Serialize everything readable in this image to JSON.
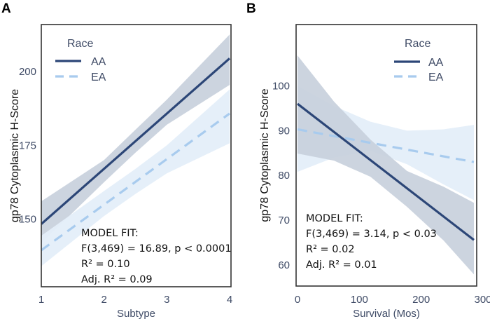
{
  "chart_data": [
    {
      "type": "line",
      "panel_label": "A",
      "xlabel": "Subtype",
      "ylabel": "gp78 Cytoplasmic H-Score",
      "xlim": [
        1,
        4
      ],
      "ylim": [
        127,
        216
      ],
      "xticks": [
        "1",
        "2",
        "3",
        "4"
      ],
      "yticks": [
        "150",
        "175",
        "200"
      ],
      "grid": false,
      "legend": {
        "title": "Race",
        "placement": "top-left"
      },
      "annotation": [
        "MODEL FIT:",
        "F(3,469) = 16.89, p < 0.0001",
        "R² = 0.10",
        "Adj. R² = 0.09"
      ],
      "series": [
        {
          "name": "AA",
          "style": "solid",
          "color": "#2c4677",
          "band_color": "#c7cfdb",
          "x": [
            1,
            4
          ],
          "y": [
            148.3,
            204.5
          ],
          "band": {
            "x": [
              1,
              2,
              2.5,
              3,
              4
            ],
            "lower": [
              141.8,
              162.5,
              172.5,
              182,
              195.5
            ],
            "upper": [
              156,
              170,
              180.3,
              190.5,
              212.6
            ]
          }
        },
        {
          "name": "EA",
          "style": "dashed",
          "color": "#a8cbee",
          "band_color": "#e4eef9",
          "x": [
            1,
            4
          ],
          "y": [
            139.4,
            185.8
          ],
          "band": {
            "x": [
              1,
              2,
              2.5,
              3,
              4
            ],
            "lower": [
              134,
              151,
              158.5,
              165.5,
              175.7
            ],
            "upper": [
              144.3,
              159.5,
              167,
              175,
              194
            ]
          }
        }
      ]
    },
    {
      "type": "line",
      "panel_label": "B",
      "xlabel": "Survival (Mos)",
      "ylabel": "gp78 Cytoplasmic H-Score",
      "xlim": [
        0,
        290
      ],
      "ylim": [
        55.3,
        113.7
      ],
      "xticks": [
        "0",
        "100",
        "200",
        "300"
      ],
      "yticks": [
        "60",
        "70",
        "80",
        "90",
        "100"
      ],
      "grid": false,
      "legend": {
        "title": "Race",
        "placement": "top-right"
      },
      "annotation": [
        "MODEL FIT:",
        "F(3,469) = 3.14, p < 0.03",
        "R² = 0.02",
        "Adj. R² = 0.01"
      ],
      "series": [
        {
          "name": "EA",
          "style": "dashed",
          "color": "#a8cbee",
          "band_color": "#e4eef9",
          "x": [
            0,
            290
          ],
          "y": [
            90.3,
            83
          ],
          "band": {
            "x": [
              0,
              60,
              120,
              180,
              240,
              290
            ],
            "lower": [
              80.8,
              84,
              85.5,
              82.5,
              78,
              74.5
            ],
            "upper": [
              100,
              95.5,
              92,
              90,
              90.3,
              91.3
            ]
          }
        },
        {
          "name": "AA",
          "style": "solid",
          "color": "#2c4677",
          "band_color": "#c7cfdb",
          "x": [
            0,
            290
          ],
          "y": [
            96,
            65.6
          ],
          "band": {
            "x": [
              0,
              60,
              120,
              180,
              240,
              290
            ],
            "lower": [
              84.9,
              83.3,
              79.7,
              73,
              65.5,
              57.9
            ],
            "upper": [
              106.8,
              96.5,
              88,
              81,
              77.5,
              73.9
            ]
          }
        }
      ]
    }
  ]
}
